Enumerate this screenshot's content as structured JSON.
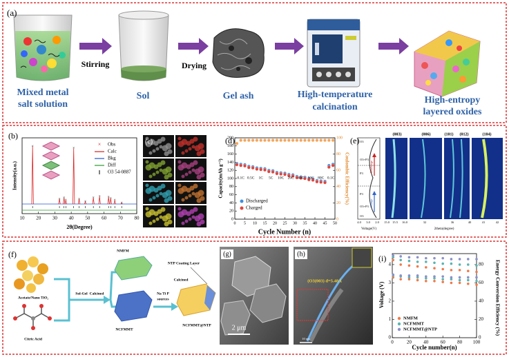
{
  "panel_a": {
    "label": "(a)",
    "steps": [
      {
        "lines": [
          "Mixed metal",
          "salt solution"
        ]
      },
      {
        "lines": [
          "Sol"
        ]
      },
      {
        "lines": [
          "Gel ash"
        ]
      },
      {
        "lines": [
          "High-temperature",
          "calcination"
        ]
      },
      {
        "lines": [
          "High-entropy",
          "layered oxides"
        ]
      }
    ],
    "arrow_labels": [
      "Stirring",
      "Drying"
    ]
  },
  "panel_b": {
    "label": "(b)",
    "y_label": "Intensity(a.u.)",
    "x_label": "2θ(Degree)",
    "xlim": [
      10,
      80
    ],
    "xticks": [
      10,
      20,
      30,
      40,
      50,
      60,
      70,
      80
    ],
    "ylim": [
      0,
      100
    ],
    "legend": [
      "Obs",
      "Calc",
      "Bkg",
      "Diff",
      "O3 54-0887"
    ],
    "peaks": {
      "x": [
        16.4,
        32.8,
        35.6,
        36.7,
        41.5,
        44.8,
        48.6,
        53.5,
        57.3,
        62.8,
        64.1,
        66.6,
        70.8
      ],
      "intensity": [
        95,
        12,
        14,
        10,
        92,
        12,
        8,
        14,
        16,
        15,
        13,
        10,
        6
      ]
    }
  },
  "panel_c": {
    "label": "(c)"
  },
  "panel_d": {
    "label": "(d)",
    "y_label": "Capacity(mAh g⁻¹)",
    "y2_label": "Coulombic Efficiency(%)",
    "x_label": "Cycle Number (n)",
    "xlim": [
      0,
      50
    ],
    "xticks": [
      0,
      5,
      10,
      15,
      20,
      25,
      30,
      35,
      40,
      45,
      50
    ],
    "ylim": [
      0,
      200
    ],
    "yticks": [
      0,
      20,
      40,
      60,
      80,
      100,
      120,
      140,
      160,
      180,
      200
    ],
    "y2lim": [
      0,
      100
    ],
    "y2ticks": [
      0,
      20,
      40,
      60,
      80,
      100
    ],
    "rate_labels": [
      "0.1C",
      "0.5C",
      "1C",
      "5C",
      "10C",
      "20C",
      "40C",
      "50C",
      "80C",
      "0.1C"
    ],
    "x": [
      1,
      3,
      5,
      7,
      9,
      11,
      13,
      15,
      17,
      19,
      21,
      23,
      25,
      27,
      29,
      31,
      33,
      35,
      37,
      39,
      41,
      43,
      45,
      47,
      49
    ],
    "series": [
      {
        "name": "Discharged",
        "color": "#3d8ee0",
        "values": [
          137,
          135,
          134,
          130,
          129,
          126,
          125,
          124,
          120,
          119,
          115,
          114,
          113,
          110,
          109,
          105,
          104,
          103,
          100,
          99,
          95,
          94,
          93,
          132,
          135
        ]
      },
      {
        "name": "Charged",
        "color": "#e0453a",
        "values": [
          134,
          132,
          131,
          127,
          126,
          123,
          122,
          121,
          117,
          116,
          112,
          111,
          110,
          107,
          106,
          102,
          101,
          100,
          97,
          96,
          92,
          91,
          90,
          128,
          132
        ]
      },
      {
        "color": "#f5a55a",
        "axis": "y2",
        "values": [
          93,
          97,
          97,
          97,
          97,
          97,
          97,
          97,
          97,
          97,
          97,
          97,
          97,
          97,
          97,
          97,
          97,
          97,
          97,
          97,
          97,
          97,
          97,
          97,
          97
        ]
      }
    ]
  },
  "panel_e": {
    "label": "(e)",
    "reflections": [
      "(003)",
      "(006)",
      "(101)",
      "(012)",
      "(104)"
    ],
    "phases": [
      "O3",
      "O3+P3",
      "P3",
      "P3",
      "O3+P3",
      "O3"
    ],
    "arrows": [
      "Discharge",
      "Charge"
    ],
    "voltage_ticks": [
      {
        "value": 4,
        "label": "4.0"
      },
      {
        "value": 3,
        "label": "3.0"
      },
      {
        "value": 2,
        "label": "2.0"
      }
    ],
    "two_theta_ticks": [
      {
        "value": 15,
        "label": "15.0"
      },
      {
        "value": 15.5,
        "label": "15.5"
      },
      {
        "value": 16,
        "label": "16.0"
      },
      32,
      36,
      40,
      41,
      42
    ],
    "x_label_left": "Voltage(V)",
    "x_label_right": "2theta(degree)"
  },
  "panel_f": {
    "label": "(f)",
    "texts": [
      "Acetate/Nano TiO₂",
      "Citric Acid",
      "Sol-Gel",
      "Calcined",
      "NMFM",
      "NCFMMT",
      "Na Ti P",
      "sources",
      "Calcined",
      "NTP Coating Layer",
      "NCFMMT@NTP"
    ]
  },
  "panel_g": {
    "label": "(g)",
    "scale": "2 μm"
  },
  "panel_h": {
    "label": "(h)",
    "annotation": "(O3(003) d=5.48Å",
    "scale": "10 nm"
  },
  "panel_i": {
    "label": "(i)",
    "y_label": "Voltage (V)",
    "y2_label": "Energy Conversion Efficiency (%)",
    "x_label": "Cycle number(n)",
    "xlim": [
      0,
      100
    ],
    "xticks": [
      0,
      20,
      40,
      60,
      80,
      100
    ],
    "ylim": [
      0,
      4.6
    ],
    "yticks": [
      0,
      1,
      2,
      3,
      4
    ],
    "y2lim": [
      0,
      92
    ],
    "y2ticks": [
      0,
      20,
      40,
      60,
      80
    ],
    "x": [
      1,
      10,
      20,
      30,
      40,
      50,
      60,
      70,
      80,
      90,
      100
    ],
    "series": [
      {
        "name": "NMFM",
        "color": "#f07a4a",
        "values": [
          3.3,
          3.2,
          3.2,
          3.15,
          3.1,
          3.1,
          3.05,
          3.0,
          3.0,
          2.95,
          2.9
        ],
        "efficiency": [
          85,
          80,
          79,
          78,
          77,
          76,
          75,
          74,
          74,
          73,
          72
        ]
      },
      {
        "name": "NCFMMT",
        "color": "#5ab5b0",
        "values": [
          3.4,
          3.35,
          3.3,
          3.3,
          3.25,
          3.25,
          3.2,
          3.2,
          3.15,
          3.15,
          3.1
        ],
        "efficiency": [
          88,
          85,
          84,
          83,
          83,
          82,
          81,
          81,
          80,
          80,
          79
        ]
      },
      {
        "name": "NCFMMT@NTP",
        "color": "#8c90c8",
        "values": [
          3.45,
          3.4,
          3.4,
          3.4,
          3.35,
          3.35,
          3.35,
          3.3,
          3.3,
          3.3,
          3.3
        ],
        "efficiency": [
          90,
          89,
          88,
          88,
          87,
          87,
          87,
          86,
          86,
          86,
          86
        ]
      }
    ]
  }
}
